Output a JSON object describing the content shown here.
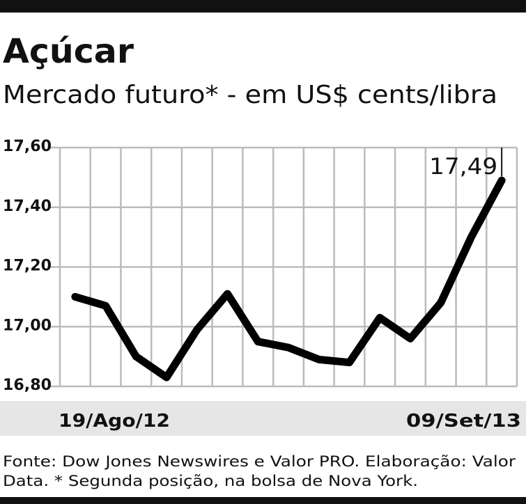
{
  "chart_data": {
    "type": "line",
    "title": "Açúcar",
    "subtitle": "Mercado futuro* - em US$ cents/libra",
    "categories": [
      "19/Ago/12",
      null,
      null,
      null,
      null,
      null,
      null,
      null,
      null,
      null,
      null,
      null,
      null,
      null,
      "09/Set/13"
    ],
    "values": [
      17.1,
      17.07,
      16.9,
      16.83,
      16.99,
      17.11,
      16.95,
      16.93,
      16.89,
      16.88,
      17.03,
      16.96,
      17.08,
      17.3,
      17.49
    ],
    "value_labels": [
      null,
      null,
      null,
      null,
      null,
      null,
      null,
      null,
      null,
      null,
      null,
      null,
      null,
      null,
      "17,49"
    ],
    "color": "#000000",
    "ylim": [
      16.8,
      17.6
    ],
    "yticks": [
      {
        "value": 16.8,
        "label": "16,80"
      },
      {
        "value": 17.0,
        "label": "17,00"
      },
      {
        "value": 17.2,
        "label": "17,20"
      },
      {
        "value": 17.4,
        "label": "17,40"
      },
      {
        "value": 17.6,
        "label": "17,60"
      }
    ],
    "grid": true,
    "source": [
      "Fonte: Dow Jones Newswires e Valor PRO. Elaboração: Valor",
      "Data. * Segunda posição, na bolsa de Nova York."
    ]
  }
}
